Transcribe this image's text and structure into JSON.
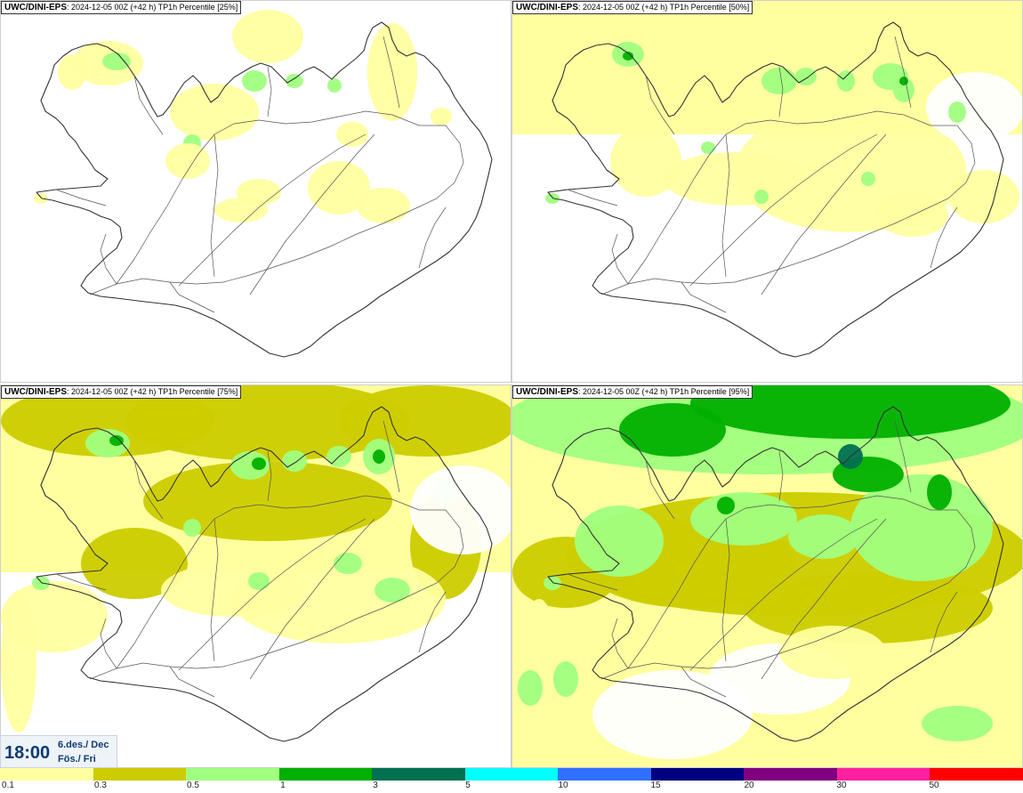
{
  "panels": [
    {
      "model": "UWC/DINI-EPS",
      "run": ": 2024-12-05 00Z (+42 h)",
      "label": " TP1h Percentile [25%]",
      "level": 25
    },
    {
      "model": "UWC/DINI-EPS",
      "run": ": 2024-12-05 00Z (+42 h)",
      "label": " TP1h Percentile [50%]",
      "level": 50
    },
    {
      "model": "UWC/DINI-EPS",
      "run": ": 2024-12-05 00Z (+42 h)",
      "label": " TP1h Percentile [75%]",
      "level": 75
    },
    {
      "model": "UWC/DINI-EPS",
      "run": ": 2024-12-05 00Z (+42 h)",
      "label": " TP1h Percentile [95%]",
      "level": 95
    }
  ],
  "valid_time": {
    "time": "18:00",
    "date_line": "6.des./ Dec",
    "day_line": "Fös./ Fri"
  },
  "legend": {
    "ticks": [
      "0.1",
      "0.3",
      "0.5",
      "1",
      "3",
      "5",
      "10",
      "15",
      "20",
      "30",
      "50"
    ],
    "colors": [
      "#ffffa0",
      "#cccc00",
      "#a0ff80",
      "#00b000",
      "#007050",
      "#00ffff",
      "#3070ff",
      "#000080",
      "#800080",
      "#ff20a0",
      "#ff0000"
    ]
  },
  "shading_colors": {
    "light_yellow": "#ffffa0",
    "olive": "#cccc00",
    "light_green": "#a0ff80",
    "green": "#00b000",
    "dark_green": "#007050"
  },
  "map": {
    "region": "Iceland",
    "outline_color": "#333333",
    "roads_color": "#555555"
  }
}
